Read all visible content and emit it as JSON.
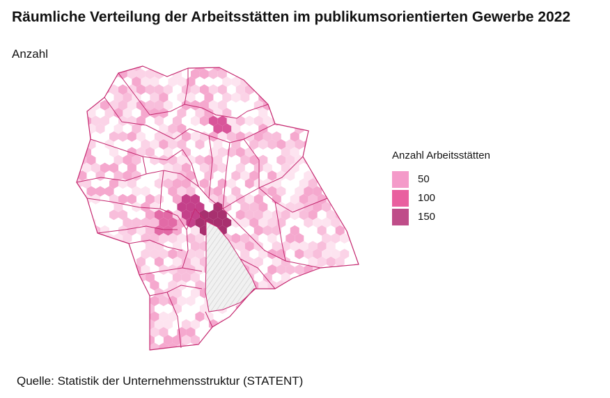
{
  "chart": {
    "title": "Räumliche Verteilung der Arbeitsstätten im publikumsorientierten Gewerbe 2022",
    "subtitle": "Anzahl",
    "source": "Quelle: Statistik der Unternehmensstruktur (STATENT)"
  },
  "legend": {
    "title": "Anzahl Arbeitsstätten",
    "items": [
      {
        "label": "50",
        "color": "#f49ac9"
      },
      {
        "label": "100",
        "color": "#e9609f"
      },
      {
        "label": "150",
        "color": "#bf4d89"
      }
    ]
  },
  "map": {
    "boundary_color": "#c4266e",
    "hex_light": "#fbd3e7",
    "lake_hatch_color": "#cfcfcf",
    "hotspots": [
      "city-centre-east",
      "city-centre-west",
      "north"
    ]
  }
}
